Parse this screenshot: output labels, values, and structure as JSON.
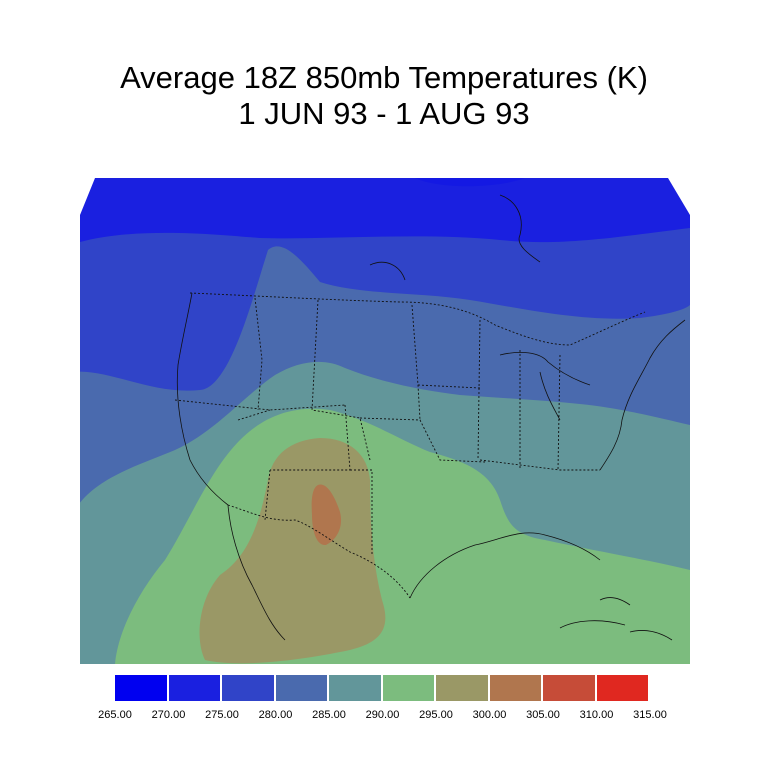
{
  "title": {
    "line1": "Average 18Z 850mb Temperatures (K)",
    "line2": "1 JUN 93 - 1 AUG 93"
  },
  "colorbar": {
    "colors": [
      "#0000f0",
      "#1a20e0",
      "#3044c8",
      "#4a6aae",
      "#62969a",
      "#7cbc7e",
      "#9a9866",
      "#b0764e",
      "#c64c38",
      "#e02820"
    ],
    "labels": [
      "265.00",
      "270.00",
      "275.00",
      "280.00",
      "285.00",
      "290.00",
      "295.00",
      "300.00",
      "305.00",
      "310.00",
      "315.00"
    ]
  },
  "chart_data": {
    "type": "heatmap",
    "title": "Average 18Z 850mb Temperatures (K)",
    "subtitle": "1 JUN 93 - 1 AUG 93",
    "variable": "850mb temperature (K)",
    "contour_levels": [
      265,
      270,
      275,
      280,
      285,
      290,
      295,
      300,
      305,
      310,
      315
    ],
    "regions_present": [
      {
        "range": "270-275",
        "area": "northern Canada"
      },
      {
        "range": "275-280",
        "area": "southern Canada / Pacific Northwest"
      },
      {
        "range": "280-285",
        "area": "northern US / Great Lakes / New England"
      },
      {
        "range": "285-290",
        "area": "central US / Pacific / Atlantic coast"
      },
      {
        "range": "290-295",
        "area": "Great Plains / Southeast / Gulf of Mexico"
      },
      {
        "range": "295-300",
        "area": "Southwest / northern Mexico"
      },
      {
        "range": "300-305",
        "area": "New Mexico / west Texas"
      }
    ]
  }
}
